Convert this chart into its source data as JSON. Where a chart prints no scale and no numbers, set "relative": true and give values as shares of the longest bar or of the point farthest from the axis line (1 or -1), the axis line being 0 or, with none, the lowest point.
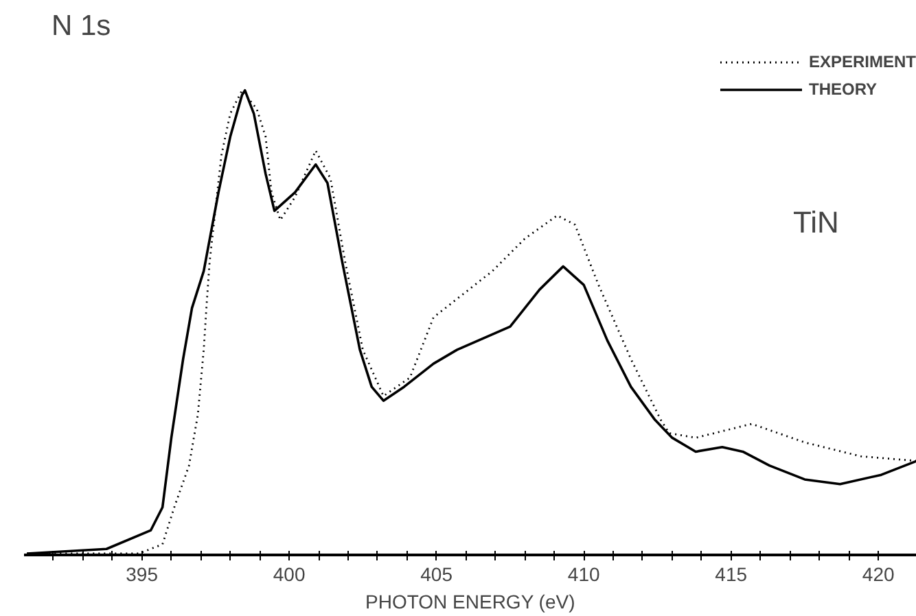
{
  "chart_data": {
    "type": "line",
    "title": "N 1s",
    "xlabel": "PHOTON ENERGY (eV)",
    "relative": true,
    "annotations": [
      "TiN"
    ],
    "xlim": [
      391.0,
      421.3
    ],
    "xticks": [
      {
        "value": 392,
        "label": null
      },
      {
        "value": 393,
        "label": null
      },
      {
        "value": 394,
        "label": null
      },
      395,
      {
        "value": 396,
        "label": null
      },
      {
        "value": 397,
        "label": null
      },
      {
        "value": 398,
        "label": null
      },
      {
        "value": 399,
        "label": null
      },
      400,
      {
        "value": 401,
        "label": null
      },
      {
        "value": 402,
        "label": null
      },
      {
        "value": 403,
        "label": null
      },
      {
        "value": 404,
        "label": null
      },
      405,
      {
        "value": 406,
        "label": null
      },
      {
        "value": 407,
        "label": null
      },
      {
        "value": 408,
        "label": null
      },
      {
        "value": 409,
        "label": null
      },
      410,
      {
        "value": 411,
        "label": null
      },
      {
        "value": 412,
        "label": null
      },
      {
        "value": 413,
        "label": null
      },
      {
        "value": 414,
        "label": null
      },
      415,
      {
        "value": 416,
        "label": null
      },
      {
        "value": 417,
        "label": null
      },
      {
        "value": 418,
        "label": null
      },
      {
        "value": 419,
        "label": null
      },
      420
    ],
    "grid": false,
    "legend": "top right",
    "tick_labels": "x",
    "series": [
      {
        "name": "EXPERIMENT",
        "color": "#000000",
        "line_style": "dotted",
        "x": [
          391.1,
          394.9,
          395.7,
          396.1,
          396.6,
          396.9,
          397.1,
          397.2,
          397.3,
          397.7,
          398.0,
          398.4,
          398.9,
          399.2,
          399.4,
          399.7,
          400.2,
          400.9,
          401.4,
          401.9,
          402.5,
          403.2,
          404.1,
          404.9,
          405.5,
          406.9,
          408.0,
          409.1,
          409.7,
          410.5,
          411.6,
          412.6,
          412.9,
          413.8,
          415.7,
          417.5,
          419.4,
          421.3
        ],
        "values": [
          0,
          0,
          0.02,
          0.1,
          0.19,
          0.3,
          0.44,
          0.54,
          0.63,
          0.86,
          0.95,
          1.0,
          0.96,
          0.9,
          0.78,
          0.72,
          0.77,
          0.87,
          0.81,
          0.63,
          0.44,
          0.34,
          0.38,
          0.51,
          0.54,
          0.61,
          0.68,
          0.73,
          0.71,
          0.58,
          0.42,
          0.29,
          0.26,
          0.25,
          0.28,
          0.24,
          0.21,
          0.2
        ]
      },
      {
        "name": "THEORY",
        "color": "#000000",
        "line_style": "solid",
        "x": [
          391.1,
          393.8,
          395.3,
          395.7,
          396.0,
          396.4,
          396.7,
          397.1,
          397.6,
          398.0,
          398.4,
          398.5,
          398.8,
          399.2,
          399.5,
          400.2,
          400.9,
          401.3,
          401.8,
          402.4,
          402.8,
          403.2,
          403.9,
          404.9,
          405.7,
          407.5,
          408.5,
          409.3,
          410.0,
          410.8,
          411.6,
          412.4,
          413.0,
          413.8,
          414.7,
          415.4,
          416.3,
          417.5,
          418.7,
          420.1,
          421.3
        ],
        "values": [
          0,
          0.01,
          0.05,
          0.1,
          0.25,
          0.42,
          0.53,
          0.61,
          0.78,
          0.9,
          0.99,
          1.0,
          0.95,
          0.82,
          0.74,
          0.78,
          0.84,
          0.8,
          0.63,
          0.44,
          0.36,
          0.33,
          0.36,
          0.41,
          0.44,
          0.49,
          0.57,
          0.62,
          0.58,
          0.46,
          0.36,
          0.29,
          0.25,
          0.22,
          0.23,
          0.22,
          0.19,
          0.16,
          0.15,
          0.17,
          0.2
        ]
      }
    ]
  }
}
